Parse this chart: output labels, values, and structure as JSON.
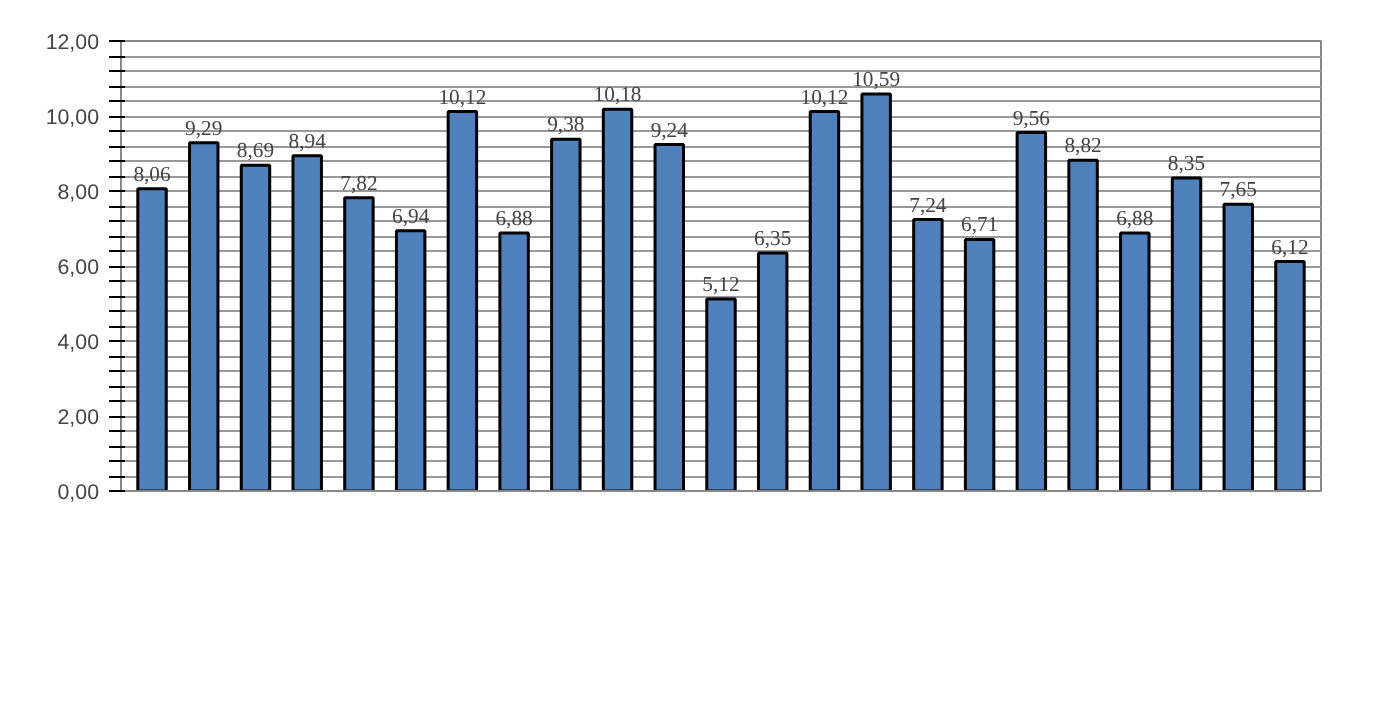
{
  "chart_data": {
    "type": "bar",
    "categories": [
      null,
      null,
      null,
      null,
      null,
      null,
      null,
      null,
      null,
      null,
      null,
      null,
      null,
      null,
      null,
      null,
      null,
      null,
      null,
      null,
      null,
      null,
      null
    ],
    "values": [
      8.06,
      9.29,
      8.69,
      8.94,
      7.82,
      6.94,
      10.12,
      6.88,
      9.38,
      10.18,
      9.24,
      5.12,
      6.35,
      10.12,
      10.59,
      7.24,
      6.71,
      9.56,
      8.82,
      6.88,
      8.35,
      7.65,
      6.12
    ],
    "value_labels": [
      "8,06",
      "9,29",
      "8,69",
      "8,94",
      "7,82",
      "6,94",
      "10,12",
      "6,88",
      "9,38",
      "10,18",
      "9,24",
      "5,12",
      "6,35",
      "10,12",
      "10,59",
      "7,24",
      "6,71",
      "9,56",
      "8,82",
      "6,88",
      "8,35",
      "7,65",
      "6,12"
    ],
    "color": "#4f81bd",
    "ylim": [
      0,
      12
    ],
    "yticks": [
      {
        "value": 0,
        "label": "0,00"
      },
      {
        "value": 0.4,
        "label": null
      },
      {
        "value": 0.8,
        "label": null
      },
      {
        "value": 1.2,
        "label": null
      },
      {
        "value": 1.6,
        "label": null
      },
      {
        "value": 2,
        "label": "2,00"
      },
      {
        "value": 2.4,
        "label": null
      },
      {
        "value": 2.8,
        "label": null
      },
      {
        "value": 3.2,
        "label": null
      },
      {
        "value": 3.6,
        "label": null
      },
      {
        "value": 4,
        "label": "4,00"
      },
      {
        "value": 4.4,
        "label": null
      },
      {
        "value": 4.8,
        "label": null
      },
      {
        "value": 5.2,
        "label": null
      },
      {
        "value": 5.6,
        "label": null
      },
      {
        "value": 6,
        "label": "6,00"
      },
      {
        "value": 6.4,
        "label": null
      },
      {
        "value": 6.8,
        "label": null
      },
      {
        "value": 7.2,
        "label": null
      },
      {
        "value": 7.6,
        "label": null
      },
      {
        "value": 8,
        "label": "8,00"
      },
      {
        "value": 8.4,
        "label": null
      },
      {
        "value": 8.8,
        "label": null
      },
      {
        "value": 9.2,
        "label": null
      },
      {
        "value": 9.6,
        "label": null
      },
      {
        "value": 10,
        "label": "10,00"
      },
      {
        "value": 10.4,
        "label": null
      },
      {
        "value": 10.8,
        "label": null
      },
      {
        "value": 11.2,
        "label": null
      },
      {
        "value": 11.6,
        "label": null
      },
      {
        "value": 12,
        "label": "12,00"
      }
    ],
    "grid": "y"
  }
}
